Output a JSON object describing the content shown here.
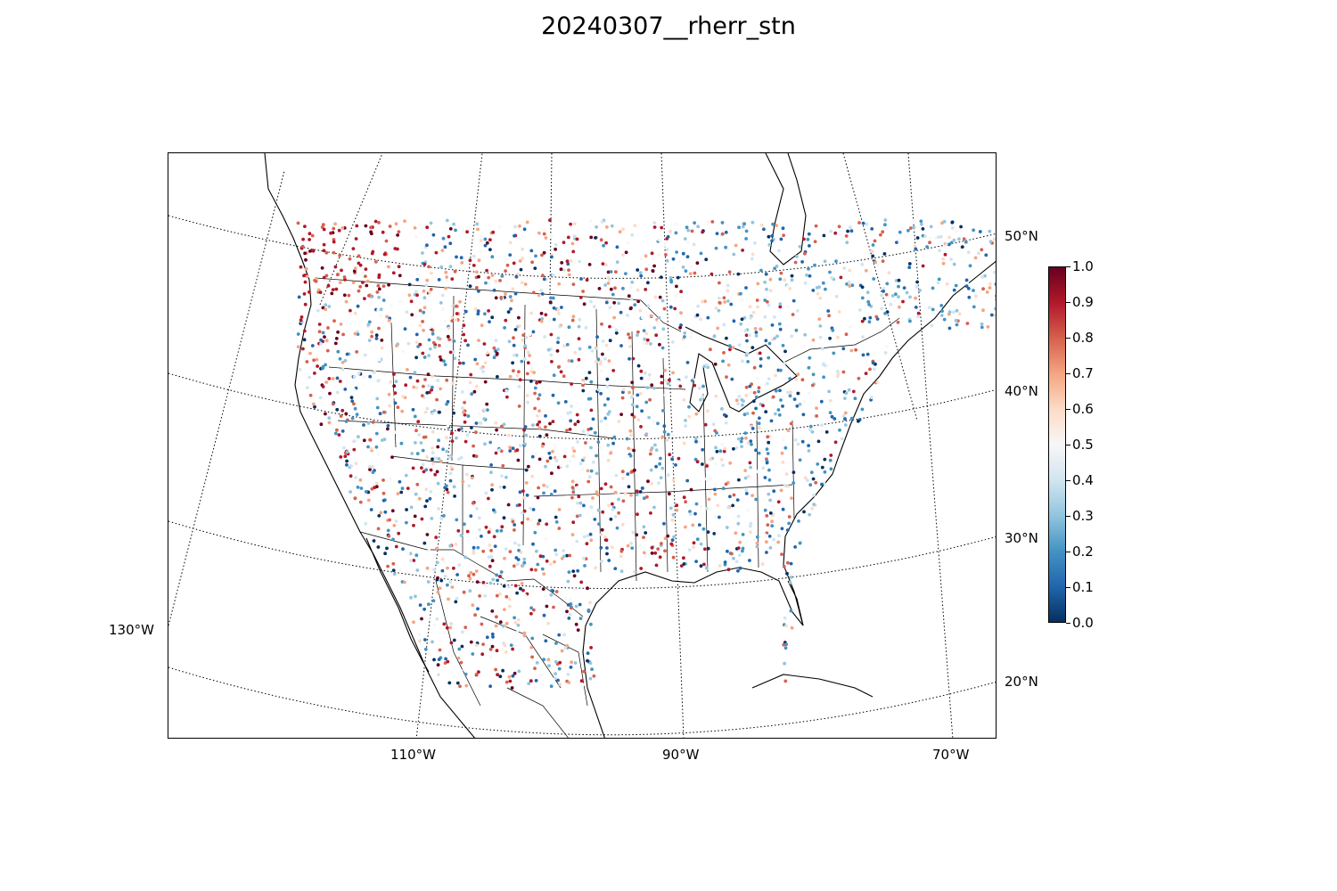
{
  "title": "20240307__rherr_stn",
  "map": {
    "projection": "lambert-conformal",
    "region": "North America / CONUS",
    "lat_labels": [
      "50°N",
      "40°N",
      "30°N",
      "20°N"
    ],
    "lon_labels": [
      "130°W",
      "110°W",
      "90°W",
      "70°W"
    ]
  },
  "colorbar": {
    "cmap": "RdBu_r",
    "min": 0.0,
    "max": 1.0,
    "tick_labels": [
      "0.0",
      "0.1",
      "0.2",
      "0.3",
      "0.4",
      "0.5",
      "0.6",
      "0.7",
      "0.8",
      "0.9",
      "1.0"
    ],
    "colors": [
      "#053061",
      "#2166ac",
      "#4393c3",
      "#92c5de",
      "#d1e5f0",
      "#f7f7f7",
      "#fddbc7",
      "#f4a582",
      "#d6604d",
      "#b2182b",
      "#67001f"
    ]
  }
}
